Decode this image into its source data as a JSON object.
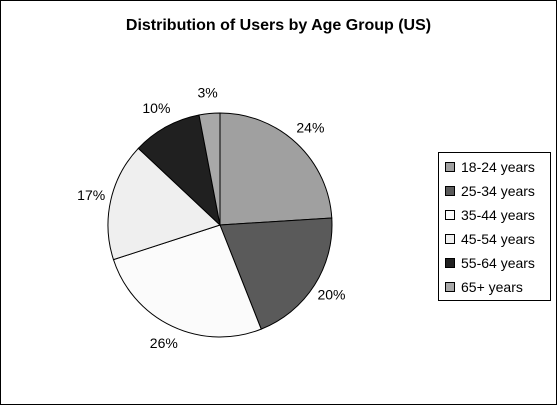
{
  "chart_data": {
    "type": "pie",
    "title": "Distribution of Users by Age Group (US)",
    "slices": [
      {
        "label": "18-24 years",
        "value": 24,
        "value_label": "24%",
        "color": "#a0a0a0"
      },
      {
        "label": "25-34 years",
        "value": 20,
        "value_label": "20%",
        "color": "#5a5a5a"
      },
      {
        "label": "35-44 years",
        "value": 26,
        "value_label": "26%",
        "color": "#fbfbfb"
      },
      {
        "label": "45-54 years",
        "value": 17,
        "value_label": "17%",
        "color": "#efefef"
      },
      {
        "label": "55-64 years",
        "value": 10,
        "value_label": "10%",
        "color": "#202020"
      },
      {
        "label": "65+ years",
        "value": 3,
        "value_label": "3%",
        "color": "#a8a8a8"
      }
    ],
    "legend_position": "right",
    "start_angle": "top, clockwise"
  }
}
